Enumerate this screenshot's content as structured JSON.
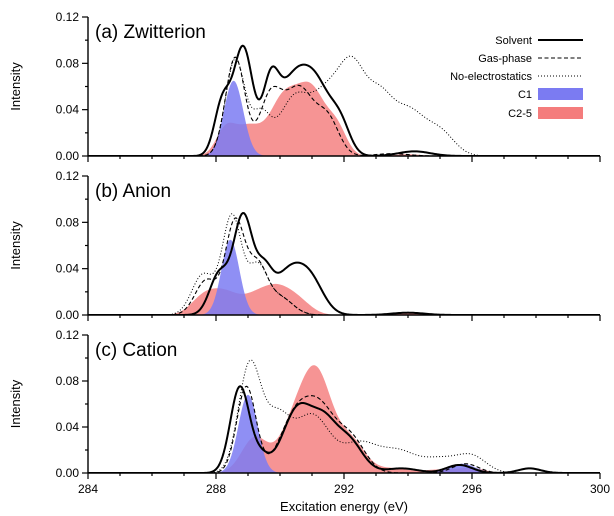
{
  "chart_data": {
    "type": "line",
    "xlabel": "Excitation energy (eV)",
    "xlim": [
      284,
      300
    ],
    "x_ticks": [
      "284",
      "288",
      "292",
      "296",
      "300"
    ],
    "colors": {
      "Solvent": "#000000",
      "Gas-phase": "#000000",
      "No-electrostatics": "#000000",
      "C1": "#7b7bf2",
      "C2-5": "#f47c7c"
    },
    "legend": {
      "position": "top-right",
      "entries": [
        {
          "label": "Solvent",
          "style": "solid-line"
        },
        {
          "label": "Gas-phase",
          "style": "dashed-line"
        },
        {
          "label": "No-electrostatics",
          "style": "dotted-line"
        },
        {
          "label": "C1",
          "style": "fill-blue"
        },
        {
          "label": "C2-5",
          "style": "fill-red"
        }
      ]
    },
    "panels": [
      {
        "title": "(a) Zwitterion",
        "ylabel": "Intensity",
        "ylim": [
          0,
          0.12
        ],
        "y_ticks": [
          "0.00",
          "0.04",
          "0.08",
          "0.12"
        ],
        "series": [
          {
            "name": "Solvent",
            "peaks": [
              [
                288.2,
                0.045,
                0.25
              ],
              [
                288.85,
                0.093,
                0.3
              ],
              [
                289.7,
                0.05,
                0.25
              ],
              [
                290.4,
                0.062,
                0.5
              ],
              [
                291.2,
                0.05,
                0.45
              ],
              [
                291.9,
                0.022,
                0.3
              ],
              [
                294.2,
                0.004,
                0.5
              ]
            ]
          },
          {
            "name": "Gas-phase",
            "peaks": [
              [
                288.6,
                0.085,
                0.3
              ],
              [
                289.7,
                0.05,
                0.35
              ],
              [
                290.6,
                0.058,
                0.45
              ],
              [
                291.5,
                0.03,
                0.35
              ],
              [
                293.5,
                0.002,
                0.5
              ]
            ]
          },
          {
            "name": "No-electrostatics",
            "peaks": [
              [
                288.6,
                0.083,
                0.3
              ],
              [
                289.4,
                0.035,
                0.3
              ],
              [
                290.4,
                0.045,
                0.45
              ],
              [
                291.5,
                0.055,
                0.55
              ],
              [
                292.3,
                0.06,
                0.4
              ],
              [
                293.1,
                0.045,
                0.4
              ],
              [
                294.0,
                0.038,
                0.5
              ],
              [
                295.0,
                0.02,
                0.45
              ]
            ]
          },
          {
            "name": "C1",
            "peaks": [
              [
                288.55,
                0.065,
                0.3
              ]
            ]
          },
          {
            "name": "C2-5",
            "peaks": [
              [
                288.3,
                0.022,
                0.3
              ],
              [
                289.0,
                0.024,
                0.4
              ],
              [
                290.1,
                0.048,
                0.45
              ],
              [
                291.0,
                0.055,
                0.45
              ],
              [
                291.8,
                0.02,
                0.3
              ],
              [
                294.0,
                0.0015,
                0.4
              ]
            ]
          }
        ]
      },
      {
        "title": "(b) Anion",
        "ylabel": "Intensity",
        "ylim": [
          0,
          0.12
        ],
        "y_ticks": [
          "0.00",
          "0.04",
          "0.08",
          "0.12"
        ],
        "series": [
          {
            "name": "Solvent",
            "peaks": [
              [
                288.1,
                0.035,
                0.3
              ],
              [
                288.85,
                0.085,
                0.3
              ],
              [
                289.5,
                0.03,
                0.25
              ],
              [
                290.3,
                0.038,
                0.5
              ],
              [
                291.0,
                0.022,
                0.4
              ],
              [
                294.0,
                0.002,
                0.5
              ]
            ]
          },
          {
            "name": "Gas-phase",
            "peaks": [
              [
                287.7,
                0.03,
                0.35
              ],
              [
                288.6,
                0.08,
                0.3
              ],
              [
                289.3,
                0.04,
                0.3
              ],
              [
                290.0,
                0.015,
                0.4
              ]
            ]
          },
          {
            "name": "No-electrostatics",
            "peaks": [
              [
                287.6,
                0.035,
                0.35
              ],
              [
                288.5,
                0.085,
                0.3
              ],
              [
                289.3,
                0.04,
                0.3
              ],
              [
                290.0,
                0.015,
                0.4
              ]
            ]
          },
          {
            "name": "C1",
            "peaks": [
              [
                288.45,
                0.065,
                0.28
              ]
            ]
          },
          {
            "name": "C2-5",
            "peaks": [
              [
                287.6,
                0.014,
                0.4
              ],
              [
                288.3,
                0.018,
                0.45
              ],
              [
                289.2,
                0.012,
                0.4
              ],
              [
                289.9,
                0.022,
                0.45
              ],
              [
                290.6,
                0.01,
                0.4
              ],
              [
                294.0,
                0.0015,
                0.4
              ]
            ]
          }
        ]
      },
      {
        "title": "(c) Cation",
        "ylabel": "Intensity",
        "ylim": [
          0,
          0.12
        ],
        "y_ticks": [
          "0.00",
          "0.04",
          "0.08",
          "0.12"
        ],
        "series": [
          {
            "name": "Solvent",
            "peaks": [
              [
                288.75,
                0.075,
                0.3
              ],
              [
                289.4,
                0.012,
                0.25
              ],
              [
                290.6,
                0.058,
                0.5
              ],
              [
                291.4,
                0.028,
                0.35
              ],
              [
                292.1,
                0.03,
                0.45
              ],
              [
                293.8,
                0.004,
                0.5
              ],
              [
                295.6,
                0.007,
                0.4
              ],
              [
                297.8,
                0.004,
                0.35
              ]
            ]
          },
          {
            "name": "Gas-phase",
            "peaks": [
              [
                288.95,
                0.075,
                0.3
              ],
              [
                290.5,
                0.05,
                0.5
              ],
              [
                291.3,
                0.045,
                0.45
              ],
              [
                292.2,
                0.03,
                0.45
              ],
              [
                295.8,
                0.008,
                0.4
              ]
            ]
          },
          {
            "name": "No-electrostatics",
            "peaks": [
              [
                289.05,
                0.093,
                0.35
              ],
              [
                289.9,
                0.045,
                0.4
              ],
              [
                291.0,
                0.05,
                0.55
              ],
              [
                292.5,
                0.025,
                0.55
              ],
              [
                293.7,
                0.018,
                0.55
              ],
              [
                295.0,
                0.012,
                0.55
              ],
              [
                296.0,
                0.014,
                0.45
              ]
            ]
          },
          {
            "name": "C1",
            "peaks": [
              [
                289.0,
                0.068,
                0.3
              ],
              [
                295.7,
                0.008,
                0.4
              ]
            ]
          },
          {
            "name": "C2-5",
            "peaks": [
              [
                289.2,
                0.03,
                0.4
              ],
              [
                290.5,
                0.045,
                0.5
              ],
              [
                291.2,
                0.072,
                0.45
              ],
              [
                292.2,
                0.028,
                0.45
              ],
              [
                293.5,
                0.004,
                0.5
              ],
              [
                295.0,
                0.003,
                0.5
              ],
              [
                296.0,
                0.004,
                0.4
              ]
            ]
          }
        ]
      }
    ]
  }
}
